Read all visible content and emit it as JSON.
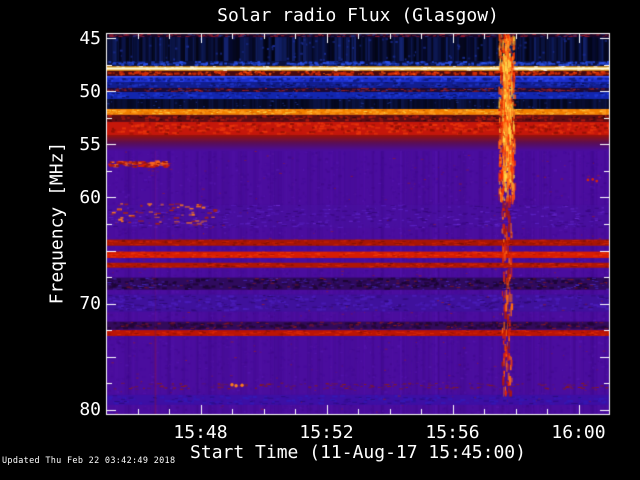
{
  "header": {
    "title": "Solar radio Flux (Glasgow)"
  },
  "axes": {
    "ylabel": "Frequency [MHz]",
    "xlabel": "Start Time (11-Aug-17 15:45:00)"
  },
  "footer": {
    "updated": "Updated Thu Feb 22 03:42:49 2018"
  },
  "palette": {
    "page_bg": "#000000",
    "text": "#ffffff",
    "frame": "#ffffff",
    "background_purple": "#4a0d9e"
  },
  "chart_data": {
    "type": "heatmap",
    "subtype": "radio-spectrogram",
    "title": "Solar radio Flux (Glasgow)",
    "xlabel": "Start Time (11-Aug-17 15:45:00)",
    "ylabel": "Frequency [MHz]",
    "x_axis": {
      "start": "15:45:00",
      "minutes_span": 16,
      "minor_tick_every_min": 1
    },
    "y_axis": {
      "unit": "MHz",
      "min": 44.5,
      "max": 80.5,
      "inverted": true,
      "major_step": 5,
      "minor_step": 2.5
    },
    "x_ticks": [
      {
        "m": 3,
        "label": "15:48"
      },
      {
        "m": 7,
        "label": "15:52"
      },
      {
        "m": 11,
        "label": "15:56"
      },
      {
        "m": 15,
        "label": "16:00"
      }
    ],
    "y_ticks": [
      {
        "f": 45,
        "label": "45"
      },
      {
        "f": 50,
        "label": "50"
      },
      {
        "f": 55,
        "label": "55"
      },
      {
        "f": 60,
        "label": "60"
      },
      {
        "f": 70,
        "label": "70"
      },
      {
        "f": 80,
        "label": "80"
      }
    ],
    "background": {
      "base": "#4a0d9e",
      "from_f": 55.6,
      "noise": [
        "#3b0782",
        "#55169e",
        "#5c1bb8",
        "#42089a",
        "#3f0b8e"
      ],
      "noise_n": 3800,
      "stripes_n": 170
    },
    "speckle": {
      "color": "#aa2014",
      "n": 280,
      "f0": 55.6,
      "f1": 80.4
    },
    "bands": [
      {
        "name": "top-edge-red-row",
        "f0": 44.5,
        "f1": 44.9,
        "base": "#1c0526",
        "dashes": [
          {
            "c": "#9c1c30",
            "n": 240,
            "w": 3,
            "h": 1
          },
          {
            "c": "#24307e",
            "n": 80,
            "w": 3,
            "h": 1
          }
        ]
      },
      {
        "name": "dark-navy-band",
        "f0": 44.9,
        "f1": 47.14,
        "base": "#05071e",
        "cols": {
          "colors": [
            "#060a2c",
            "#0a1240",
            "#0e1a55",
            "#030514",
            "#142470"
          ],
          "n": 420
        },
        "dashes": [
          {
            "c": "#1a2c90",
            "n": 90,
            "w": 2,
            "h": 2
          }
        ]
      },
      {
        "name": "blue-dash-row",
        "f0": 47.14,
        "f1": 47.61,
        "base": "#0a103c",
        "dashes": [
          {
            "c": "#2a50e8",
            "n": 300,
            "w": 3,
            "h": 2
          },
          {
            "c": "#1430a0",
            "n": 150,
            "w": 3,
            "h": 1
          }
        ]
      },
      {
        "name": "yellow-line-48mhz",
        "f0": 47.61,
        "f1": 48.08,
        "grad": [
          "#a35c10",
          "#ffdf45",
          "#b86410"
        ],
        "hline": {
          "f": 47.85,
          "c": "#fffbda",
          "h": 2
        },
        "dashes": [
          {
            "c": "#fff8e8",
            "n": 150,
            "w": 3,
            "h": 1
          },
          {
            "c": "#ffb021",
            "n": 110,
            "w": 2,
            "h": 1
          }
        ]
      },
      {
        "name": "red-dash-row",
        "f0": 48.08,
        "f1": 48.55,
        "base": "#47090e",
        "dashes": [
          {
            "c": "#d42e08",
            "n": 260,
            "w": 3,
            "h": 2
          },
          {
            "c": "#ff5c14",
            "n": 90,
            "w": 2,
            "h": 1
          }
        ]
      },
      {
        "name": "blue-band-upper",
        "f0": 48.55,
        "f1": 49.12,
        "base": "#1b2ecc",
        "hline": {
          "f": 48.62,
          "c": "#3a52f2",
          "h": 1.5
        },
        "dashes": [
          {
            "c": "#2c44ee",
            "n": 200,
            "w": 3,
            "h": 2
          },
          {
            "c": "#0e1a80",
            "n": 160,
            "w": 3,
            "h": 2
          }
        ]
      },
      {
        "name": "blue-band-mid",
        "f0": 49.12,
        "f1": 49.68,
        "base": "#111e8e",
        "dashes": [
          {
            "c": "#1e32c0",
            "n": 150,
            "w": 3,
            "h": 2
          },
          {
            "c": "#090f50",
            "n": 120,
            "w": 3,
            "h": 1
          }
        ]
      },
      {
        "name": "red-speck-row-50mhz",
        "f0": 49.68,
        "f1": 50.06,
        "base": "#1c0a34",
        "dashes": [
          {
            "c": "#a62224",
            "n": 200,
            "w": 3,
            "h": 1
          },
          {
            "c": "#2236b0",
            "n": 60,
            "w": 2,
            "h": 1
          }
        ]
      },
      {
        "name": "blue-band-lower",
        "f0": 50.06,
        "f1": 50.72,
        "base": "#1226ae",
        "dashes": [
          {
            "c": "#2038d0",
            "n": 150,
            "w": 3,
            "h": 2
          },
          {
            "c": "#0a1260",
            "n": 120,
            "w": 3,
            "h": 1
          }
        ]
      },
      {
        "name": "dark-navy-band-2",
        "f0": 50.72,
        "f1": 51.66,
        "base": "#070a26",
        "cols": {
          "colors": [
            "#0a1038",
            "#0d164a",
            "#05081e"
          ],
          "n": 280
        },
        "dashes": [
          {
            "c": "#20348e",
            "n": 60,
            "w": 2,
            "h": 1
          }
        ]
      },
      {
        "name": "orange-band-52mhz",
        "f0": 51.66,
        "f1": 52.22,
        "base": "#f28000",
        "dashes": [
          {
            "c": "#ffd54a",
            "n": 160,
            "w": 3,
            "h": 1
          },
          {
            "c": "#c25400",
            "n": 120,
            "w": 3,
            "h": 1
          },
          {
            "c": "#ff9b1e",
            "n": 120,
            "w": 4,
            "h": 2
          }
        ]
      },
      {
        "name": "dark-red-band",
        "f0": 52.22,
        "f1": 52.88,
        "base": "#5e0d12",
        "dashes": [
          {
            "c": "#a81a10",
            "n": 200,
            "w": 3,
            "h": 2
          },
          {
            "c": "#30060a",
            "n": 100,
            "w": 3,
            "h": 1
          }
        ]
      },
      {
        "name": "bright-red-band-53mhz",
        "f0": 52.88,
        "f1": 54.11,
        "base": "#c5170a",
        "dashes": [
          {
            "c": "#e8330c",
            "n": 260,
            "w": 4,
            "h": 2
          },
          {
            "c": "#911006",
            "n": 160,
            "w": 3,
            "h": 2
          }
        ]
      },
      {
        "name": "red-fade-to-purple",
        "f0": 54.11,
        "f1": 55.6,
        "grad": [
          "#9c1207",
          "#5a0e55",
          "#4a0d9e"
        ]
      },
      {
        "name": "mottle-band-61mhz",
        "f0": 60.7,
        "f1": 62.87,
        "base": "rgba(70,18,160,0.45)",
        "dashes": [
          {
            "c": "#5a22c4",
            "n": 220,
            "w": 4,
            "h": 1
          },
          {
            "c": "#37077c",
            "n": 220,
            "w": 4,
            "h": 1
          },
          {
            "c": "#6a2ad0",
            "n": 60,
            "w": 3,
            "h": 1
          }
        ]
      },
      {
        "name": "red-band-64mhz",
        "f0": 63.97,
        "f1": 64.55,
        "base": "#a81505",
        "dashes": [
          {
            "c": "#cc2408",
            "n": 160,
            "w": 4,
            "h": 1
          },
          {
            "c": "#7c1004",
            "n": 100,
            "w": 3,
            "h": 1
          }
        ]
      },
      {
        "name": "bright-red-band-65mhz",
        "f0": 65.1,
        "f1": 65.7,
        "base": "#d81d02",
        "dashes": [
          {
            "c": "#f03a0a",
            "n": 160,
            "w": 4,
            "h": 1
          },
          {
            "c": "#a81404",
            "n": 80,
            "w": 3,
            "h": 1
          }
        ]
      },
      {
        "name": "red-band-66mhz",
        "f0": 66.15,
        "f1": 66.62,
        "base": "#b01605",
        "dashes": [
          {
            "c": "#d42808",
            "n": 140,
            "w": 4,
            "h": 1
          },
          {
            "c": "#801004",
            "n": 80,
            "w": 3,
            "h": 1
          }
        ]
      },
      {
        "name": "dark-dash-band-68mhz",
        "f0": 67.55,
        "f1": 68.7,
        "base": "#2f0a5e",
        "dashes": [
          {
            "c": "#1c0534",
            "n": 240,
            "w": 4,
            "h": 2
          },
          {
            "c": "#4426b8",
            "n": 160,
            "w": 3,
            "h": 1
          },
          {
            "c": "#7c1a24",
            "n": 60,
            "w": 3,
            "h": 1
          }
        ]
      },
      {
        "name": "blue-mottle-band-70mhz",
        "f0": 69.15,
        "f1": 70.75,
        "base": "#3f119c",
        "dashes": [
          {
            "c": "#4a1cb8",
            "n": 260,
            "w": 4,
            "h": 2
          },
          {
            "c": "#2f0a74",
            "n": 200,
            "w": 4,
            "h": 1
          }
        ]
      },
      {
        "name": "dark-dash-band-72mhz",
        "f0": 71.7,
        "f1": 72.45,
        "base": "#320a5a",
        "dashes": [
          {
            "c": "#230636",
            "n": 220,
            "w": 4,
            "h": 2
          },
          {
            "c": "#8c1a20",
            "n": 120,
            "w": 3,
            "h": 1
          }
        ]
      },
      {
        "name": "red-band-73mhz",
        "f0": 72.5,
        "f1": 73.05,
        "base": "#bc1505",
        "dashes": [
          {
            "c": "#dd2a08",
            "n": 160,
            "w": 4,
            "h": 1
          },
          {
            "c": "#8a1004",
            "n": 90,
            "w": 3,
            "h": 1
          }
        ]
      },
      {
        "name": "speck-row-78mhz",
        "f0": 77.45,
        "f1": 78.12,
        "base": "rgba(0,0,0,0)",
        "dashes": [
          {
            "c": "#8f1e10",
            "n": 120,
            "w": 3,
            "h": 1
          },
          {
            "c": "#5e1464",
            "n": 70,
            "w": 3,
            "h": 1
          }
        ]
      },
      {
        "name": "blue-row-79mhz",
        "f0": 78.6,
        "f1": 79.55,
        "base": "#3d0fa4",
        "dashes": [
          {
            "c": "#3518b4",
            "n": 170,
            "w": 4,
            "h": 2
          },
          {
            "c": "#2c0b80",
            "n": 100,
            "w": 4,
            "h": 1
          }
        ]
      }
    ],
    "events": [
      {
        "type": "hdashes",
        "name": "drift-segment-57mhz",
        "m0": 0.05,
        "m1": 1.9,
        "f0": 56.5,
        "f1": 57.05,
        "colors": [
          "#d82208",
          "#ff6a1a",
          "#911406"
        ],
        "n": 110
      },
      {
        "type": "hdashes",
        "name": "speck-cluster-61mhz",
        "m0": 0.1,
        "m1": 3.6,
        "f0": 60.5,
        "f1": 62.5,
        "colors": [
          "#a82214",
          "#ff7d1a"
        ],
        "n": 60
      },
      {
        "type": "vline",
        "name": "interference-line-faint",
        "m": 1.57,
        "f0": 55.6,
        "f1": 72.45,
        "color": "#7a1040",
        "alpha": 0.16,
        "w": 1.5
      },
      {
        "type": "vline",
        "name": "interference-line",
        "m": 1.57,
        "f0": 72.45,
        "f1": 80.5,
        "color": "#7e1242",
        "alpha": 0.45,
        "w": 1.8
      },
      {
        "type": "burst",
        "name": "radio-burst-1557-strong",
        "m0": 12.45,
        "m1": 12.95,
        "f0": 44.5,
        "f1": 60.2,
        "colors": [
          "#ff3000",
          "#ff7b1c",
          "#ffc53a",
          "#d01c02",
          "#ff5510"
        ],
        "n": 520
      },
      {
        "type": "burst",
        "name": "radio-burst-1557-core",
        "m0": 12.58,
        "m1": 12.82,
        "f0": 45.0,
        "f1": 58.5,
        "colors": [
          "#ffd84a",
          "#ff8a20",
          "#ff4a08"
        ],
        "n": 300
      },
      {
        "type": "burst",
        "name": "radio-burst-1557-tail",
        "m0": 12.55,
        "m1": 12.85,
        "f0": 60.2,
        "f1": 78.3,
        "colors": [
          "#e02508",
          "#ff6a10",
          "#b01808"
        ],
        "n": 150
      },
      {
        "type": "dots",
        "name": "orange-dots-78mhz",
        "color": "#ff7d1a",
        "r": 1.7,
        "points": [
          {
            "m": 4.0,
            "f": 77.65
          },
          {
            "m": 4.13,
            "f": 77.75
          },
          {
            "m": 4.32,
            "f": 77.7
          }
        ]
      },
      {
        "type": "dots",
        "name": "red-dots-right-58mhz",
        "color": "#d22410",
        "r": 1.4,
        "points": [
          {
            "m": 15.3,
            "f": 58.35
          },
          {
            "m": 15.45,
            "f": 58.3
          },
          {
            "m": 15.58,
            "f": 58.45
          }
        ]
      }
    ]
  }
}
